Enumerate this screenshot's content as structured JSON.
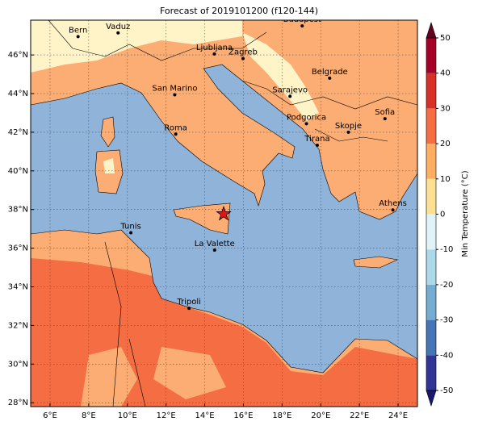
{
  "map": {
    "title": "Forecast of 2019101200 (f120-144)",
    "lon_range": [
      5,
      25
    ],
    "lat_range": [
      27.8,
      47.8
    ],
    "lon_ticks": [
      {
        "value": 6,
        "label": "6°E"
      },
      {
        "value": 8,
        "label": "8°E"
      },
      {
        "value": 10,
        "label": "10°E"
      },
      {
        "value": 12,
        "label": "12°E"
      },
      {
        "value": 14,
        "label": "14°E"
      },
      {
        "value": 16,
        "label": "16°E"
      },
      {
        "value": 18,
        "label": "18°E"
      },
      {
        "value": 20,
        "label": "20°E"
      },
      {
        "value": 22,
        "label": "22°E"
      },
      {
        "value": 24,
        "label": "24°E"
      }
    ],
    "lat_ticks": [
      {
        "value": 28,
        "label": "28°N"
      },
      {
        "value": 30,
        "label": "30°N"
      },
      {
        "value": 32,
        "label": "32°N"
      },
      {
        "value": 34,
        "label": "34°N"
      },
      {
        "value": 36,
        "label": "36°N"
      },
      {
        "value": 38,
        "label": "38°N"
      },
      {
        "value": 40,
        "label": "40°N"
      },
      {
        "value": 42,
        "label": "42°N"
      },
      {
        "value": 44,
        "label": "44°N"
      },
      {
        "value": 46,
        "label": "46°N"
      }
    ],
    "cities": [
      {
        "name": "Bern",
        "lon": 7.45,
        "lat": 46.95
      },
      {
        "name": "Vaduz",
        "lon": 9.52,
        "lat": 47.14
      },
      {
        "name": "Budapest",
        "lon": 19.04,
        "lat": 47.5
      },
      {
        "name": "Ljubljana",
        "lon": 14.5,
        "lat": 46.05
      },
      {
        "name": "Zagreb",
        "lon": 15.98,
        "lat": 45.81
      },
      {
        "name": "Belgrade",
        "lon": 20.46,
        "lat": 44.8
      },
      {
        "name": "San Marino",
        "lon": 12.45,
        "lat": 43.94
      },
      {
        "name": "Sarajevo",
        "lon": 18.41,
        "lat": 43.86
      },
      {
        "name": "Sofia",
        "lon": 23.32,
        "lat": 42.7
      },
      {
        "name": "Roma",
        "lon": 12.5,
        "lat": 41.9
      },
      {
        "name": "Podgorica",
        "lon": 19.26,
        "lat": 42.44
      },
      {
        "name": "Skopje",
        "lon": 21.43,
        "lat": 42.0
      },
      {
        "name": "Tirana",
        "lon": 19.82,
        "lat": 41.33
      },
      {
        "name": "Athens",
        "lon": 23.73,
        "lat": 37.98
      },
      {
        "name": "Tunis",
        "lon": 10.18,
        "lat": 36.8
      },
      {
        "name": "La Valette",
        "lon": 14.51,
        "lat": 35.9
      },
      {
        "name": "Tripoli",
        "lon": 13.19,
        "lat": 32.89
      }
    ],
    "marker": {
      "lon": 14.98,
      "lat": 37.77
    },
    "colorbar": {
      "label": "Min Temperature (°C)",
      "range": [
        -50,
        50
      ],
      "ticks": [
        -50,
        -40,
        -30,
        -20,
        -10,
        0,
        10,
        20,
        30,
        40,
        50
      ],
      "colors": [
        "#313695",
        "#4575b4",
        "#74add1",
        "#abd9e9",
        "#e0f3f8",
        "#fee090",
        "#fdae61",
        "#f46d43",
        "#d73027",
        "#a50026"
      ],
      "under_color": "#191970",
      "over_color": "#67001f"
    }
  }
}
